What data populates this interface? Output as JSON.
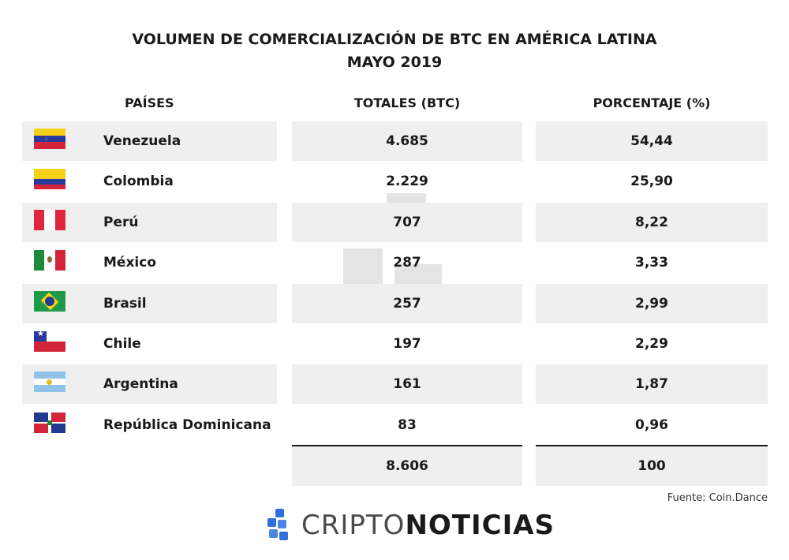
{
  "title": {
    "line1": "VOLUMEN DE COMERCIALIZACIÓN DE BTC EN AMÉRICA LATINA",
    "line2": "MAYO 2019"
  },
  "columns": {
    "countries": "PAÍSES",
    "totals": "TOTALES (BTC)",
    "percent": "PORCENTAJE (%)"
  },
  "rows": [
    {
      "country": "Venezuela",
      "total": "4.685",
      "percent": "54,44",
      "flag": "venezuela-flag"
    },
    {
      "country": "Colombia",
      "total": "2.229",
      "percent": "25,90",
      "flag": "colombia-flag"
    },
    {
      "country": "Perú",
      "total": "707",
      "percent": "8,22",
      "flag": "peru-flag"
    },
    {
      "country": "México",
      "total": "287",
      "percent": "3,33",
      "flag": "mexico-flag"
    },
    {
      "country": "Brasil",
      "total": "257",
      "percent": "2,99",
      "flag": "brazil-flag"
    },
    {
      "country": "Chile",
      "total": "197",
      "percent": "2,29",
      "flag": "chile-flag"
    },
    {
      "country": "Argentina",
      "total": "161",
      "percent": "1,87",
      "flag": "argentina-flag"
    },
    {
      "country": "República Dominicana",
      "total": "83",
      "percent": "0,96",
      "flag": "dominican-republic-flag"
    }
  ],
  "totals_row": {
    "total": "8.606",
    "percent": "100"
  },
  "source": "Fuente: Coin.Dance",
  "logo": {
    "part1": "CRIPTO",
    "part2": "NOTICIAS"
  },
  "colors": {
    "row_background": "#efeff0",
    "logo_blue": "#2f6fde",
    "text": "#1a1a1a"
  },
  "chart_data": {
    "type": "table",
    "title": "VOLUMEN DE COMERCIALIZACIÓN DE BTC EN AMÉRICA LATINA",
    "subtitle": "MAYO 2019",
    "columns": [
      "PAÍSES",
      "TOTALES (BTC)",
      "PORCENTAJE (%)"
    ],
    "categories": [
      "Venezuela",
      "Colombia",
      "Perú",
      "México",
      "Brasil",
      "Chile",
      "Argentina",
      "República Dominicana"
    ],
    "series": [
      {
        "name": "TOTALES (BTC)",
        "values": [
          4685,
          2229,
          707,
          287,
          257,
          197,
          161,
          83
        ]
      },
      {
        "name": "PORCENTAJE (%)",
        "values": [
          54.44,
          25.9,
          8.22,
          3.33,
          2.99,
          2.29,
          1.87,
          0.96
        ]
      }
    ],
    "totals": {
      "TOTALES (BTC)": 8606,
      "PORCENTAJE (%)": 100
    }
  }
}
